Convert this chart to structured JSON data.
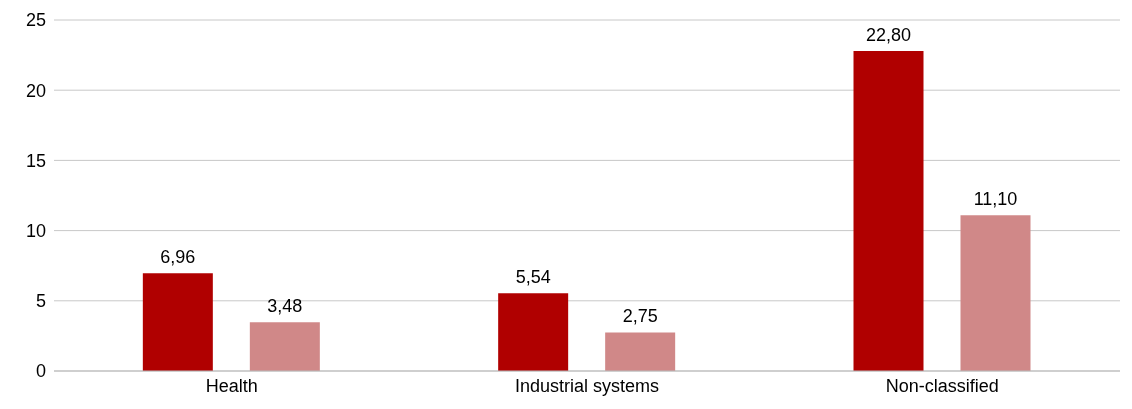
{
  "chart_data": {
    "type": "bar",
    "categories": [
      "Health",
      "Industrial systems",
      "Non-classified"
    ],
    "series": [
      {
        "color": "#b00000",
        "values": [
          6.96,
          5.54,
          22.8
        ],
        "value_labels": [
          "6,96",
          "5,54",
          "22,80"
        ]
      },
      {
        "color": "#d08888",
        "values": [
          3.48,
          2.75,
          11.1
        ],
        "value_labels": [
          "3,48",
          "2,75",
          "11,10"
        ]
      }
    ],
    "ylim": [
      0,
      25
    ],
    "yticks": [
      0,
      5,
      10,
      15,
      20,
      25
    ],
    "grid": "y"
  }
}
